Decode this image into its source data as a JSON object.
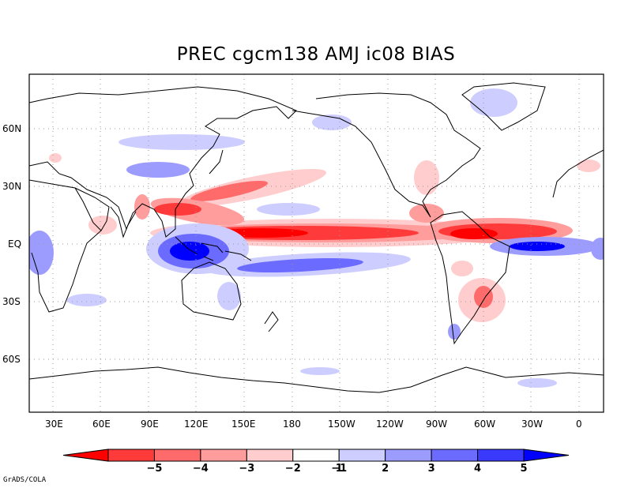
{
  "title": "PREC cgcm138 AMJ ic08 BIAS",
  "credit": "GrADS/COLA",
  "lon_labels": [
    "30E",
    "60E",
    "90E",
    "120E",
    "150E",
    "180",
    "150W",
    "120W",
    "90W",
    "60W",
    "30W",
    "0"
  ],
  "lat_labels": [
    "60N",
    "30N",
    "EQ",
    "30S",
    "60S"
  ],
  "colorbar": {
    "labels": [
      "-5",
      "-4",
      "-3",
      "-2",
      "-1",
      "1",
      "2",
      "3",
      "4",
      "5"
    ],
    "colors": [
      "#ff0000",
      "#ff3a3a",
      "#ff6b6b",
      "#ff9c9c",
      "#ffcdcd",
      "#ffffff",
      "#cdcdff",
      "#9c9cff",
      "#6b6bff",
      "#3a3aff",
      "#0000ff"
    ]
  },
  "colors": {
    "wet": "#3a3aff",
    "dry": "#ff3a3a",
    "coast": "#000000",
    "grid": "#9a9a9a"
  }
}
